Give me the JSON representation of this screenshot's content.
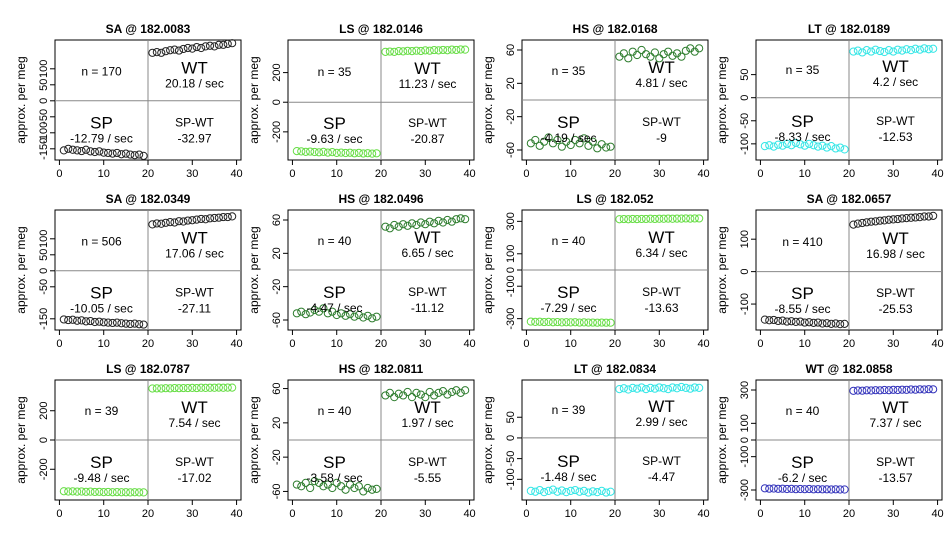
{
  "colors": {
    "SA": "#222222",
    "LS": "#66dd44",
    "HS": "#2e7d2e",
    "LT": "#33e6e6",
    "WT": "#3333bb",
    "frame": "#000000",
    "divider": "#888888"
  },
  "ylabel": "approx. per meg",
  "chart_data": [
    {
      "type": "scatter",
      "title": "SA @ 182.0083",
      "marker_color": "SA",
      "xticks": [
        0,
        10,
        20,
        30,
        40
      ],
      "xlim": [
        -1,
        41
      ],
      "yticks": [
        -150,
        -100,
        -50,
        0,
        50,
        100
      ],
      "ylim": [
        -185,
        190
      ],
      "sp_values": [
        -155,
        -150,
        -153,
        -155,
        -157,
        -153,
        -158,
        -160,
        -158,
        -162,
        -163,
        -165,
        -163,
        -167,
        -165,
        -168,
        -170,
        -168,
        -172
      ],
      "wt_values": [
        150,
        152,
        150,
        155,
        158,
        160,
        157,
        162,
        165,
        163,
        168,
        165,
        170,
        172,
        170,
        175,
        175,
        178,
        180
      ],
      "n": "n = 170",
      "wt_label": "WT",
      "wt_rate": "20.18 / sec",
      "sp_label": "SP",
      "sp_rate": "-12.79 / sec",
      "diff_label": "SP-WT",
      "diff_value": "-32.97"
    },
    {
      "type": "scatter",
      "title": "LS @ 182.0146",
      "marker_color": "LS",
      "xticks": [
        0,
        10,
        20,
        30,
        40
      ],
      "xlim": [
        -1,
        41
      ],
      "yticks": [
        -200,
        0,
        200
      ],
      "ylim": [
        -390,
        420
      ],
      "sp_values": [
        -330,
        -332,
        -335,
        -333,
        -336,
        -338,
        -335,
        -340,
        -337,
        -342,
        -340,
        -343,
        -341,
        -345,
        -342,
        -346,
        -344,
        -347,
        -345
      ],
      "wt_values": [
        340,
        342,
        340,
        345,
        343,
        347,
        345,
        348,
        346,
        350,
        348,
        352,
        350,
        353,
        351,
        355,
        353,
        356,
        355
      ],
      "n": "n = 35",
      "wt_label": "WT",
      "wt_rate": "11.23 / sec",
      "sp_label": "SP",
      "sp_rate": "-9.63 / sec",
      "diff_label": "SP-WT",
      "diff_value": "-20.87"
    },
    {
      "type": "scatter",
      "title": "HS @ 182.0168",
      "marker_color": "HS",
      "xticks": [
        0,
        10,
        20,
        30,
        40
      ],
      "xlim": [
        -1,
        41
      ],
      "yticks": [
        -60,
        -20,
        20,
        60
      ],
      "ylim": [
        -72,
        72
      ],
      "sp_values": [
        -52,
        -48,
        -55,
        -50,
        -45,
        -52,
        -48,
        -56,
        -50,
        -54,
        -48,
        -52,
        -46,
        -55,
        -50,
        -58,
        -53,
        -57,
        -56
      ],
      "wt_values": [
        52,
        56,
        50,
        58,
        54,
        60,
        55,
        52,
        57,
        50,
        55,
        58,
        53,
        56,
        52,
        59,
        62,
        58,
        62
      ],
      "n": "n = 35",
      "wt_label": "WT",
      "wt_rate": "4.81 / sec",
      "sp_label": "SP",
      "sp_rate": "-4.19 / sec",
      "diff_label": "SP-WT",
      "diff_value": "-9"
    },
    {
      "type": "scatter",
      "title": "LT @ 182.0189",
      "marker_color": "LT",
      "xticks": [
        0,
        10,
        20,
        30,
        40
      ],
      "xlim": [
        -1,
        41
      ],
      "yticks": [
        -100,
        -50,
        0,
        50
      ],
      "ylim": [
        -135,
        125
      ],
      "sp_values": [
        -105,
        -103,
        -106,
        -102,
        -104,
        -100,
        -103,
        -98,
        -101,
        -104,
        -100,
        -103,
        -106,
        -104,
        -108,
        -105,
        -110,
        -108,
        -112
      ],
      "wt_values": [
        100,
        102,
        98,
        103,
        100,
        104,
        101,
        99,
        103,
        100,
        104,
        102,
        105,
        103,
        106,
        104,
        107,
        105,
        106
      ],
      "n": "n = 35",
      "wt_label": "WT",
      "wt_rate": "4.2 / sec",
      "sp_label": "SP",
      "sp_rate": "-8.33 / sec",
      "diff_label": "SP-WT",
      "diff_value": "-12.53"
    },
    {
      "type": "scatter",
      "title": "SA @ 182.0349",
      "marker_color": "SA",
      "xticks": [
        0,
        10,
        20,
        30,
        40
      ],
      "xlim": [
        -1,
        41
      ],
      "yticks": [
        -150,
        -50,
        0,
        50,
        100
      ],
      "ylim": [
        -185,
        190
      ],
      "sp_values": [
        -152,
        -154,
        -153,
        -156,
        -155,
        -158,
        -157,
        -160,
        -159,
        -161,
        -162,
        -163,
        -162,
        -164,
        -165,
        -166,
        -165,
        -167,
        -168
      ],
      "wt_values": [
        145,
        148,
        147,
        150,
        152,
        151,
        155,
        154,
        157,
        158,
        160,
        162,
        161,
        164,
        165,
        166,
        168,
        168,
        170
      ],
      "n": "n = 506",
      "wt_label": "WT",
      "wt_rate": "17.06 / sec",
      "sp_label": "SP",
      "sp_rate": "-10.05 / sec",
      "diff_label": "SP-WT",
      "diff_value": "-27.11"
    },
    {
      "type": "scatter",
      "title": "HS @ 182.0496",
      "marker_color": "HS",
      "xticks": [
        0,
        10,
        20,
        30,
        40
      ],
      "xlim": [
        -1,
        41
      ],
      "yticks": [
        -60,
        -20,
        20,
        60
      ],
      "ylim": [
        -72,
        72
      ],
      "sp_values": [
        -52,
        -50,
        -53,
        -51,
        -48,
        -50,
        -46,
        -52,
        -50,
        -54,
        -52,
        -55,
        -53,
        -56,
        -54,
        -57,
        -55,
        -58,
        -56
      ],
      "wt_values": [
        52,
        50,
        54,
        52,
        55,
        53,
        56,
        54,
        57,
        55,
        58,
        56,
        59,
        57,
        60,
        58,
        61,
        62,
        61
      ],
      "n": "n = 40",
      "wt_label": "WT",
      "wt_rate": "6.65 / sec",
      "sp_label": "SP",
      "sp_rate": "-4.47 / sec",
      "diff_label": "SP-WT",
      "diff_value": "-11.12"
    },
    {
      "type": "scatter",
      "title": "LS @ 182.052",
      "marker_color": "LS",
      "xticks": [
        0,
        10,
        20,
        30,
        40
      ],
      "xlim": [
        -1,
        41
      ],
      "yticks": [
        -300,
        -100,
        0,
        100,
        300
      ],
      "ylim": [
        -370,
        370
      ],
      "sp_values": [
        -318,
        -320,
        -319,
        -321,
        -320,
        -322,
        -321,
        -323,
        -322,
        -323,
        -322,
        -324,
        -323,
        -324,
        -324,
        -325,
        -324,
        -325,
        -325
      ],
      "wt_values": [
        313,
        314,
        313,
        315,
        314,
        315,
        315,
        316,
        315,
        316,
        316,
        317,
        316,
        317,
        317,
        318,
        317,
        318,
        318
      ],
      "n": "n = 40",
      "wt_label": "WT",
      "wt_rate": "6.34 / sec",
      "sp_label": "SP",
      "sp_rate": "-7.29 / sec",
      "diff_label": "SP-WT",
      "diff_value": "-13.63"
    },
    {
      "type": "scatter",
      "title": "SA @ 182.0657",
      "marker_color": "SA",
      "xticks": [
        0,
        10,
        20,
        30,
        40
      ],
      "xlim": [
        -1,
        41
      ],
      "yticks": [
        -100,
        0,
        100
      ],
      "ylim": [
        -180,
        190
      ],
      "sp_values": [
        -148,
        -150,
        -149,
        -152,
        -151,
        -154,
        -153,
        -155,
        -154,
        -157,
        -156,
        -158,
        -157,
        -160,
        -159,
        -161,
        -160,
        -162,
        -161
      ],
      "wt_values": [
        145,
        148,
        150,
        152,
        154,
        155,
        157,
        158,
        160,
        161,
        162,
        164,
        165,
        166,
        167,
        168,
        170,
        170,
        172
      ],
      "n": "n = 410",
      "wt_label": "WT",
      "wt_rate": "16.98 / sec",
      "sp_label": "SP",
      "sp_rate": "-8.55 / sec",
      "diff_label": "SP-WT",
      "diff_value": "-25.53"
    },
    {
      "type": "scatter",
      "title": "LS @ 182.0787",
      "marker_color": "LS",
      "xticks": [
        0,
        10,
        20,
        30,
        40
      ],
      "xlim": [
        -1,
        41
      ],
      "yticks": [
        -200,
        0,
        200
      ],
      "ylim": [
        -410,
        410
      ],
      "sp_values": [
        -350,
        -352,
        -351,
        -353,
        -352,
        -354,
        -353,
        -355,
        -354,
        -356,
        -355,
        -357,
        -356,
        -357,
        -357,
        -358,
        -357,
        -358,
        -358
      ],
      "wt_values": [
        352,
        353,
        352,
        354,
        353,
        355,
        354,
        355,
        355,
        356,
        355,
        357,
        356,
        357,
        357,
        358,
        357,
        358,
        358
      ],
      "n": "n = 39",
      "wt_label": "WT",
      "wt_rate": "7.54 / sec",
      "sp_label": "SP",
      "sp_rate": "-9.48 / sec",
      "diff_label": "SP-WT",
      "diff_value": "-17.02"
    },
    {
      "type": "scatter",
      "title": "HS @ 182.0811",
      "marker_color": "HS",
      "xticks": [
        0,
        10,
        20,
        30,
        40
      ],
      "xlim": [
        -1,
        41
      ],
      "yticks": [
        -60,
        -20,
        20,
        60
      ],
      "ylim": [
        -70,
        70
      ],
      "sp_values": [
        -52,
        -54,
        -50,
        -56,
        -48,
        -50,
        -54,
        -52,
        -56,
        -50,
        -54,
        -58,
        -52,
        -56,
        -54,
        -60,
        -56,
        -58,
        -57
      ],
      "wt_values": [
        52,
        55,
        50,
        54,
        52,
        56,
        50,
        55,
        53,
        50,
        56,
        52,
        55,
        57,
        53,
        56,
        58,
        55,
        58
      ],
      "n": "n = 40",
      "wt_label": "WT",
      "wt_rate": "1.97 / sec",
      "sp_label": "SP",
      "sp_rate": "-3.58 / sec",
      "diff_label": "SP-WT",
      "diff_value": "-5.55"
    },
    {
      "type": "scatter",
      "title": "LT @ 182.0834",
      "marker_color": "LT",
      "xticks": [
        0,
        10,
        20,
        30,
        40
      ],
      "xlim": [
        -1,
        41
      ],
      "yticks": [
        -100,
        -50,
        0,
        50
      ],
      "ylim": [
        -150,
        140
      ],
      "sp_values": [
        -128,
        -130,
        -126,
        -131,
        -128,
        -125,
        -130,
        -127,
        -131,
        -128,
        -126,
        -130,
        -128,
        -132,
        -129,
        -131,
        -128,
        -132,
        -130
      ],
      "wt_values": [
        118,
        120,
        117,
        121,
        119,
        122,
        118,
        121,
        119,
        122,
        120,
        118,
        122,
        120,
        123,
        121,
        119,
        122,
        121
      ],
      "n": "n = 39",
      "wt_label": "WT",
      "wt_rate": "2.99 / sec",
      "sp_label": "SP",
      "sp_rate": "-1.48 / sec",
      "diff_label": "SP-WT",
      "diff_value": "-4.47"
    },
    {
      "type": "scatter",
      "title": "WT @ 182.0858",
      "marker_color": "WT",
      "xticks": [
        0,
        10,
        20,
        30,
        40
      ],
      "xlim": [
        -1,
        41
      ],
      "yticks": [
        -300,
        -100,
        0,
        100,
        300
      ],
      "ylim": [
        -360,
        360
      ],
      "sp_values": [
        -290,
        -292,
        -291,
        -293,
        -292,
        -294,
        -293,
        -295,
        -294,
        -295,
        -294,
        -296,
        -295,
        -296,
        -296,
        -297,
        -296,
        -297,
        -297
      ],
      "wt_values": [
        295,
        297,
        296,
        298,
        297,
        299,
        298,
        300,
        299,
        301,
        300,
        302,
        301,
        303,
        302,
        304,
        303,
        305,
        304
      ],
      "n": "n = 40",
      "wt_label": "WT",
      "wt_rate": "7.37 / sec",
      "sp_label": "SP",
      "sp_rate": "-6.2 / sec",
      "diff_label": "SP-WT",
      "diff_value": "-13.57"
    }
  ]
}
